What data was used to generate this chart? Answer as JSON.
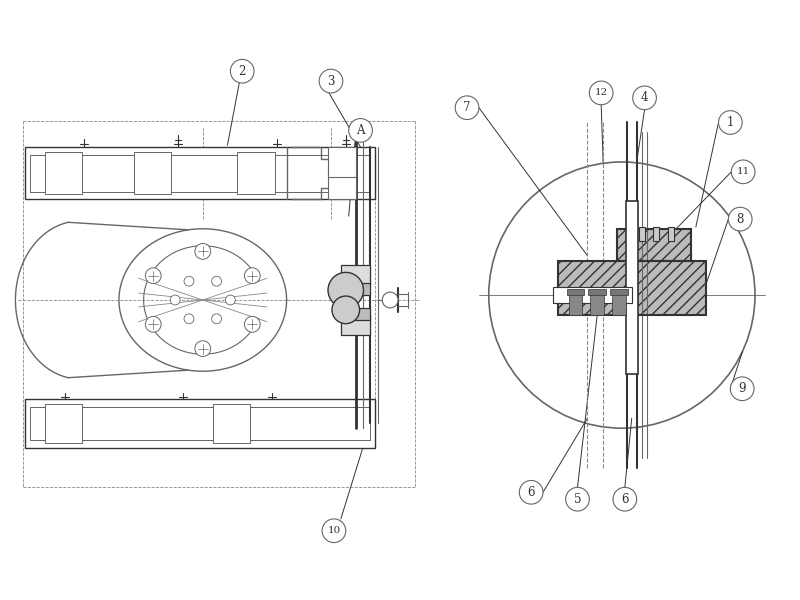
{
  "bg_color": "#ffffff",
  "line_color": "#666666",
  "dark_line": "#333333",
  "mid_line": "#888888",
  "figsize": [
    8.0,
    6.0
  ],
  "dpi": 100,
  "border_color": "#999999"
}
